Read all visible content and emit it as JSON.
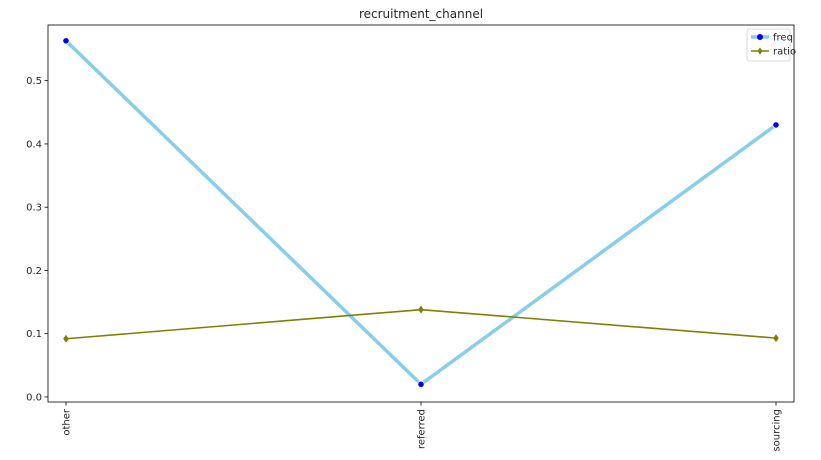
{
  "chart_data": {
    "type": "line",
    "title": "recruitment_channel",
    "xlabel": "",
    "ylabel": "",
    "categories": [
      "other",
      "referred",
      "sourcing"
    ],
    "series": [
      {
        "name": "freq",
        "values": [
          0.563,
          0.02,
          0.43
        ],
        "color": "#87CEEB",
        "marker": "circle",
        "marker_color": "#0000FF"
      },
      {
        "name": "ratio",
        "values": [
          0.092,
          0.138,
          0.093
        ],
        "color": "#808000",
        "marker": "diamond",
        "marker_color": "#808000"
      }
    ],
    "ylim": [
      -0.008,
      0.588
    ],
    "yticks": [
      "0.0",
      "0.1",
      "0.2",
      "0.3",
      "0.4",
      "0.5"
    ],
    "ytick_values": [
      0.0,
      0.1,
      0.2,
      0.3,
      0.4,
      0.5
    ],
    "legend": "top-right",
    "grid": false
  }
}
